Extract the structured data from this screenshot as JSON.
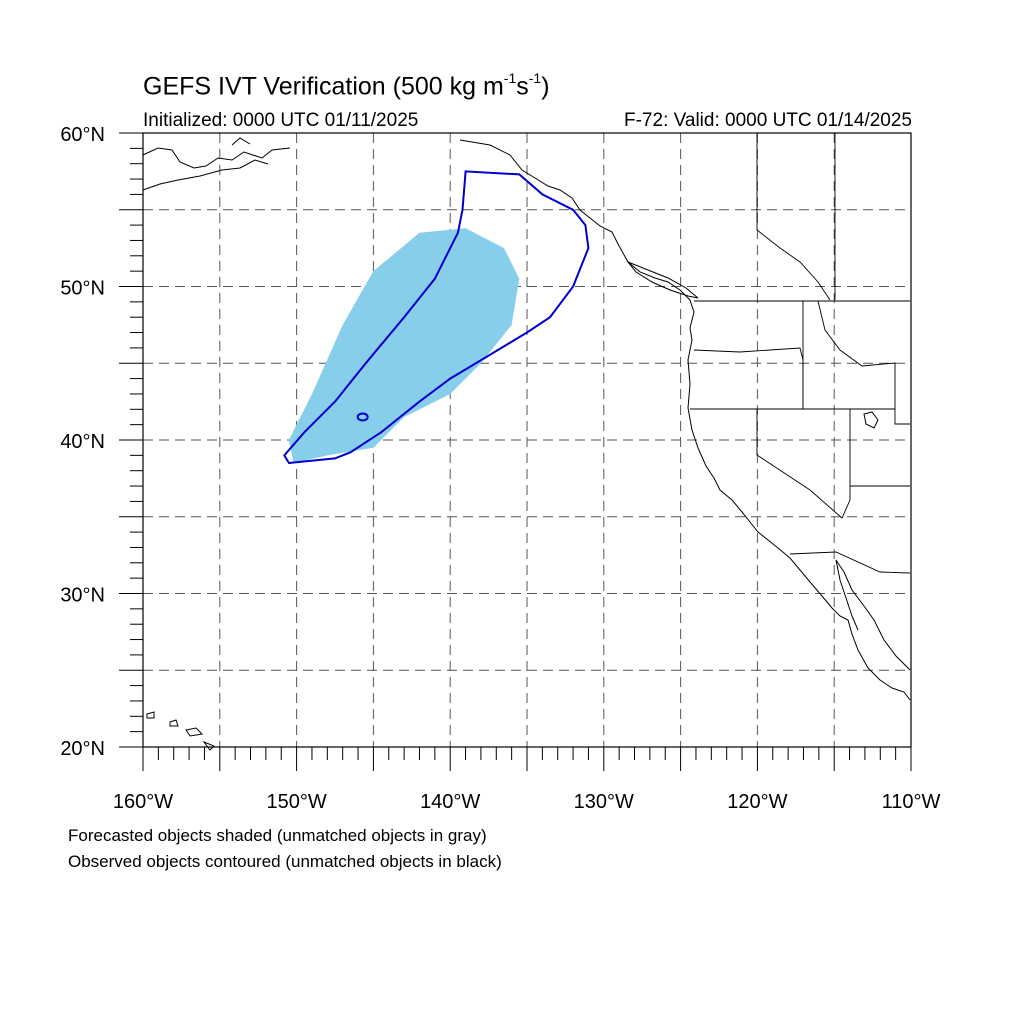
{
  "title": {
    "main": "GEFS IVT Verification (500 kg m",
    "exp1": "-1",
    "mid": "s",
    "exp2": "-1",
    "close": ")"
  },
  "initialized": "Initialized: 0000 UTC 01/11/2025",
  "valid": "F-72: Valid: 0000 UTC 01/14/2025",
  "notes": {
    "forecast": "Forecasted objects shaded (unmatched objects in gray)",
    "observed": "Observed objects contoured (unmatched objects in black)"
  },
  "axes": {
    "lat_labels": [
      "20°N",
      "30°N",
      "40°N",
      "50°N",
      "60°N"
    ],
    "lon_labels": [
      "160°W",
      "150°W",
      "140°W",
      "130°W",
      "120°W",
      "110°W"
    ],
    "lat_range": [
      20,
      60
    ],
    "lon_range": [
      -160,
      -110
    ],
    "grid": "dashed, every 5 degrees"
  },
  "colors": {
    "forecast_fill": "#87ceeb",
    "observed_contour": "#0000cc",
    "coastline": "#000000",
    "grid": "#555555"
  },
  "objects": {
    "forecast": {
      "label": "Forecast IVT object",
      "polygon": [
        [
          -150.2,
          38.5
        ],
        [
          -148,
          39
        ],
        [
          -145,
          39.5
        ],
        [
          -143,
          41.5
        ],
        [
          -140,
          43
        ],
        [
          -138,
          45
        ],
        [
          -136,
          47.5
        ],
        [
          -135.5,
          50.5
        ],
        [
          -136.5,
          52.5
        ],
        [
          -139,
          53.8
        ],
        [
          -142,
          53.5
        ],
        [
          -145,
          51
        ],
        [
          -147,
          47.5
        ],
        [
          -149,
          43
        ],
        [
          -150.5,
          40
        ]
      ]
    },
    "observed": {
      "label": "Observed IVT object",
      "polygon": [
        [
          -150.5,
          38.5
        ],
        [
          -147.5,
          38.8
        ],
        [
          -146.5,
          39.2
        ],
        [
          -144.5,
          40.5
        ],
        [
          -142,
          42.5
        ],
        [
          -140,
          44
        ],
        [
          -137.5,
          45.5
        ],
        [
          -135,
          47
        ],
        [
          -133.5,
          48
        ],
        [
          -132,
          50
        ],
        [
          -131,
          52.5
        ],
        [
          -131.2,
          54
        ],
        [
          -132,
          55
        ],
        [
          -134,
          56
        ],
        [
          -135.5,
          57.3
        ],
        [
          -139,
          57.5
        ],
        [
          -139.2,
          55
        ],
        [
          -139.5,
          53.5
        ],
        [
          -141,
          50.5
        ],
        [
          -143,
          48
        ],
        [
          -145.5,
          45
        ],
        [
          -147.5,
          42.5
        ],
        [
          -149.5,
          40.5
        ],
        [
          -150.8,
          39
        ]
      ]
    }
  }
}
